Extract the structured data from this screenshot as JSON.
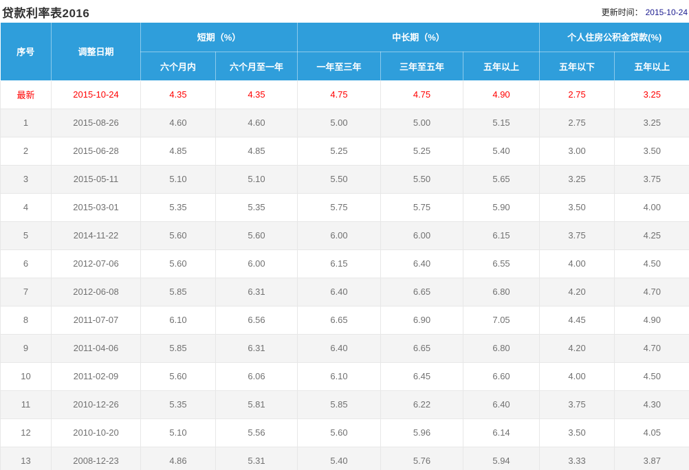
{
  "page": {
    "title": "贷款利率表2016",
    "update_label": "更新时间：",
    "update_date": "2015-10-24"
  },
  "colors": {
    "header_bg": "#2f9edb",
    "highlight_text": "#ff0000",
    "alt_row_bg": "#f4f4f4",
    "data_text": "#707070",
    "update_date_text": "#1a1a8f"
  },
  "table": {
    "header": {
      "col_seq": "序号",
      "col_date": "调整日期",
      "group_short": "短期（%）",
      "group_mid": "中长期（%）",
      "group_fund": "个人住房公积金贷款(%)",
      "sub_short_1": "六个月内",
      "sub_short_2": "六个月至一年",
      "sub_mid_1": "一年至三年",
      "sub_mid_2": "三年至五年",
      "sub_mid_3": "五年以上",
      "sub_fund_1": "五年以下",
      "sub_fund_2": "五年以上"
    },
    "rows": [
      {
        "seq": "最新",
        "date": "2015-10-24",
        "values": [
          "4.35",
          "4.35",
          "4.75",
          "4.75",
          "4.90",
          "2.75",
          "3.25"
        ],
        "highlight": true
      },
      {
        "seq": "1",
        "date": "2015-08-26",
        "values": [
          "4.60",
          "4.60",
          "5.00",
          "5.00",
          "5.15",
          "2.75",
          "3.25"
        ]
      },
      {
        "seq": "2",
        "date": "2015-06-28",
        "values": [
          "4.85",
          "4.85",
          "5.25",
          "5.25",
          "5.40",
          "3.00",
          "3.50"
        ]
      },
      {
        "seq": "3",
        "date": "2015-05-11",
        "values": [
          "5.10",
          "5.10",
          "5.50",
          "5.50",
          "5.65",
          "3.25",
          "3.75"
        ]
      },
      {
        "seq": "4",
        "date": "2015-03-01",
        "values": [
          "5.35",
          "5.35",
          "5.75",
          "5.75",
          "5.90",
          "3.50",
          "4.00"
        ]
      },
      {
        "seq": "5",
        "date": "2014-11-22",
        "values": [
          "5.60",
          "5.60",
          "6.00",
          "6.00",
          "6.15",
          "3.75",
          "4.25"
        ]
      },
      {
        "seq": "6",
        "date": "2012-07-06",
        "values": [
          "5.60",
          "6.00",
          "6.15",
          "6.40",
          "6.55",
          "4.00",
          "4.50"
        ]
      },
      {
        "seq": "7",
        "date": "2012-06-08",
        "values": [
          "5.85",
          "6.31",
          "6.40",
          "6.65",
          "6.80",
          "4.20",
          "4.70"
        ]
      },
      {
        "seq": "8",
        "date": "2011-07-07",
        "values": [
          "6.10",
          "6.56",
          "6.65",
          "6.90",
          "7.05",
          "4.45",
          "4.90"
        ]
      },
      {
        "seq": "9",
        "date": "2011-04-06",
        "values": [
          "5.85",
          "6.31",
          "6.40",
          "6.65",
          "6.80",
          "4.20",
          "4.70"
        ]
      },
      {
        "seq": "10",
        "date": "2011-02-09",
        "values": [
          "5.60",
          "6.06",
          "6.10",
          "6.45",
          "6.60",
          "4.00",
          "4.50"
        ]
      },
      {
        "seq": "11",
        "date": "2010-12-26",
        "values": [
          "5.35",
          "5.81",
          "5.85",
          "6.22",
          "6.40",
          "3.75",
          "4.30"
        ]
      },
      {
        "seq": "12",
        "date": "2010-10-20",
        "values": [
          "5.10",
          "5.56",
          "5.60",
          "5.96",
          "6.14",
          "3.50",
          "4.05"
        ]
      },
      {
        "seq": "13",
        "date": "2008-12-23",
        "values": [
          "4.86",
          "5.31",
          "5.40",
          "5.76",
          "5.94",
          "3.33",
          "3.87"
        ]
      }
    ]
  }
}
